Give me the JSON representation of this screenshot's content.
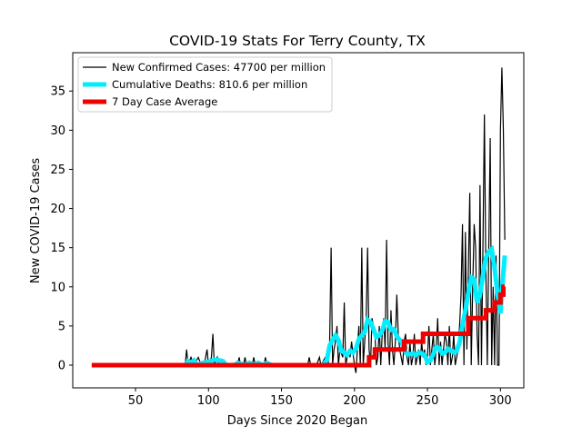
{
  "chart_data": {
    "type": "line",
    "title": "COVID-19 Stats For Terry County, TX",
    "xlabel": "Days Since 2020 Began",
    "ylabel": "New COVID-19 Cases",
    "xlim": [
      7,
      316
    ],
    "ylim": [
      -2.9,
      39.9
    ],
    "x_ticks": [
      50,
      100,
      150,
      200,
      250,
      300
    ],
    "y_ticks": [
      0,
      5,
      10,
      15,
      20,
      25,
      30,
      35
    ],
    "grid": false,
    "legend_position": "top-left",
    "series": [
      {
        "name": "New Confirmed Cases: 47700 per million",
        "color": "#000000",
        "points": [
          [
            20,
            0
          ],
          [
            84,
            0
          ],
          [
            85,
            2
          ],
          [
            86,
            0
          ],
          [
            88,
            1
          ],
          [
            90,
            0
          ],
          [
            93,
            1
          ],
          [
            95,
            0
          ],
          [
            97,
            0
          ],
          [
            99,
            2
          ],
          [
            100,
            0
          ],
          [
            102,
            1
          ],
          [
            103,
            4
          ],
          [
            104,
            0
          ],
          [
            106,
            1
          ],
          [
            107,
            0
          ],
          [
            110,
            0
          ],
          [
            112,
            0
          ],
          [
            120,
            0
          ],
          [
            121,
            1
          ],
          [
            122,
            0
          ],
          [
            124,
            0
          ],
          [
            125,
            1
          ],
          [
            126,
            0
          ],
          [
            130,
            0
          ],
          [
            131,
            1
          ],
          [
            132,
            0
          ],
          [
            138,
            0
          ],
          [
            139,
            1
          ],
          [
            140,
            0
          ],
          [
            145,
            0
          ],
          [
            168,
            0
          ],
          [
            169,
            1
          ],
          [
            170,
            0
          ],
          [
            174,
            0
          ],
          [
            176,
            1
          ],
          [
            177,
            0
          ],
          [
            180,
            1
          ],
          [
            182,
            0
          ],
          [
            183,
            3
          ],
          [
            184,
            15
          ],
          [
            185,
            0
          ],
          [
            186,
            2
          ],
          [
            187,
            3
          ],
          [
            188,
            5
          ],
          [
            189,
            0
          ],
          [
            190,
            2
          ],
          [
            192,
            1
          ],
          [
            193,
            8
          ],
          [
            194,
            0
          ],
          [
            196,
            2
          ],
          [
            197,
            1
          ],
          [
            198,
            3
          ],
          [
            200,
            0
          ],
          [
            201,
            -1
          ],
          [
            202,
            2
          ],
          [
            203,
            5
          ],
          [
            204,
            0
          ],
          [
            205,
            15
          ],
          [
            206,
            0
          ],
          [
            207,
            3
          ],
          [
            208,
            6
          ],
          [
            209,
            15
          ],
          [
            210,
            2
          ],
          [
            211,
            0
          ],
          [
            212,
            6
          ],
          [
            213,
            5
          ],
          [
            214,
            4
          ],
          [
            215,
            0
          ],
          [
            216,
            1
          ],
          [
            217,
            5
          ],
          [
            218,
            0
          ],
          [
            219,
            4
          ],
          [
            220,
            6
          ],
          [
            221,
            2
          ],
          [
            222,
            16
          ],
          [
            223,
            3
          ],
          [
            224,
            0
          ],
          [
            225,
            7
          ],
          [
            226,
            2
          ],
          [
            227,
            0
          ],
          [
            228,
            3
          ],
          [
            229,
            9
          ],
          [
            230,
            4
          ],
          [
            231,
            2
          ],
          [
            232,
            1
          ],
          [
            233,
            0
          ],
          [
            234,
            3
          ],
          [
            235,
            4
          ],
          [
            236,
            1
          ],
          [
            237,
            0
          ],
          [
            238,
            3
          ],
          [
            239,
            0
          ],
          [
            240,
            1
          ],
          [
            241,
            4
          ],
          [
            242,
            0
          ],
          [
            243,
            1
          ],
          [
            244,
            2
          ],
          [
            245,
            0
          ],
          [
            246,
            3
          ],
          [
            247,
            1
          ],
          [
            248,
            2
          ],
          [
            249,
            0
          ],
          [
            250,
            1
          ],
          [
            251,
            5
          ],
          [
            252,
            0
          ],
          [
            253,
            2
          ],
          [
            254,
            4
          ],
          [
            255,
            0
          ],
          [
            256,
            2
          ],
          [
            257,
            6
          ],
          [
            258,
            0
          ],
          [
            259,
            3
          ],
          [
            260,
            0
          ],
          [
            261,
            2
          ],
          [
            262,
            4
          ],
          [
            263,
            3
          ],
          [
            264,
            0
          ],
          [
            265,
            5
          ],
          [
            266,
            0
          ],
          [
            267,
            1
          ],
          [
            268,
            4
          ],
          [
            269,
            0
          ],
          [
            270,
            1
          ],
          [
            271,
            2
          ],
          [
            272,
            5
          ],
          [
            273,
            9
          ],
          [
            274,
            18
          ],
          [
            275,
            0
          ],
          [
            276,
            17
          ],
          [
            277,
            2
          ],
          [
            278,
            12
          ],
          [
            279,
            22
          ],
          [
            280,
            0
          ],
          [
            281,
            10
          ],
          [
            282,
            18
          ],
          [
            283,
            15
          ],
          [
            284,
            4
          ],
          [
            285,
            0
          ],
          [
            286,
            23
          ],
          [
            287,
            0
          ],
          [
            288,
            15
          ],
          [
            289,
            32
          ],
          [
            290,
            12
          ],
          [
            291,
            0
          ],
          [
            292,
            15
          ],
          [
            293,
            29
          ],
          [
            294,
            0
          ],
          [
            295,
            10
          ],
          [
            296,
            0
          ],
          [
            297,
            14
          ],
          [
            298,
            0
          ],
          [
            299,
            0
          ],
          [
            300,
            30
          ],
          [
            301,
            38
          ],
          [
            302,
            30
          ],
          [
            303,
            16
          ]
        ]
      },
      {
        "name": "Cumulative Deaths: 810.6 per million",
        "color": "#00eeff",
        "points": [
          [
            84,
            0
          ],
          [
            86,
            0.5
          ],
          [
            88,
            0.3
          ],
          [
            90,
            0.6
          ],
          [
            92,
            0
          ],
          [
            96,
            0.3
          ],
          [
            100,
            0.4
          ],
          [
            104,
            0.7
          ],
          [
            108,
            0.6
          ],
          [
            110,
            0.5
          ],
          [
            112,
            0
          ],
          [
            118,
            0
          ],
          [
            120,
            0.3
          ],
          [
            125,
            0
          ],
          [
            128,
            0.3
          ],
          [
            131,
            0
          ],
          [
            134,
            0.3
          ],
          [
            137,
            0
          ],
          [
            140,
            0.3
          ],
          [
            143,
            0
          ],
          [
            145,
            0
          ],
          [
            178,
            0
          ],
          [
            181,
            0.6
          ],
          [
            183,
            2.5
          ],
          [
            185,
            3.2
          ],
          [
            187,
            3.8
          ],
          [
            189,
            3.2
          ],
          [
            191,
            1.8
          ],
          [
            193,
            1.6
          ],
          [
            195,
            1.3
          ],
          [
            197,
            1.8
          ],
          [
            199,
            1.6
          ],
          [
            201,
            2.1
          ],
          [
            203,
            3.3
          ],
          [
            205,
            3.8
          ],
          [
            207,
            4.2
          ],
          [
            209,
            5.8
          ],
          [
            211,
            5.5
          ],
          [
            213,
            4.6
          ],
          [
            215,
            3.6
          ],
          [
            217,
            3.8
          ],
          [
            219,
            4.4
          ],
          [
            221,
            5.6
          ],
          [
            223,
            5.5
          ],
          [
            225,
            4.5
          ],
          [
            227,
            4.6
          ],
          [
            229,
            3.7
          ],
          [
            231,
            3.2
          ],
          [
            232,
            3.1
          ],
          [
            234,
            2.0
          ],
          [
            236,
            1.4
          ],
          [
            238,
            1.4
          ],
          [
            240,
            1.5
          ],
          [
            242,
            1.3
          ],
          [
            244,
            1.6
          ],
          [
            246,
            1.5
          ],
          [
            248,
            1.3
          ],
          [
            250,
            0.4
          ],
          [
            252,
            0.6
          ],
          [
            254,
            1.4
          ],
          [
            256,
            2.3
          ],
          [
            258,
            2.2
          ],
          [
            260,
            1.5
          ],
          [
            262,
            1.6
          ],
          [
            264,
            2.1
          ],
          [
            266,
            1.9
          ],
          [
            268,
            1.6
          ],
          [
            270,
            1.8
          ],
          [
            272,
            2.9
          ],
          [
            274,
            5.1
          ],
          [
            276,
            7.0
          ],
          [
            278,
            9.2
          ],
          [
            280,
            11.2
          ],
          [
            282,
            11.0
          ],
          [
            284,
            8.0
          ],
          [
            286,
            9.0
          ],
          [
            288,
            11.4
          ],
          [
            290,
            13.7
          ],
          [
            292,
            14.5
          ],
          [
            294,
            14.8
          ],
          [
            296,
            12.4
          ],
          [
            298,
            9.1
          ],
          [
            300,
            6.6
          ],
          [
            301,
            9.5
          ],
          [
            303,
            14.0
          ]
        ]
      },
      {
        "name": "7 Day Case Average",
        "color": "#ee0000",
        "points": [
          [
            20,
            0
          ],
          [
            210,
            0
          ],
          [
            210,
            1
          ],
          [
            214,
            1
          ],
          [
            214,
            2
          ],
          [
            234,
            2
          ],
          [
            234,
            3
          ],
          [
            247,
            3
          ],
          [
            247,
            4
          ],
          [
            278,
            4
          ],
          [
            278,
            6
          ],
          [
            290,
            6
          ],
          [
            290,
            7
          ],
          [
            296,
            7
          ],
          [
            296,
            8
          ],
          [
            300,
            8
          ],
          [
            300,
            9
          ],
          [
            302,
            9
          ],
          [
            302,
            10
          ],
          [
            303,
            10
          ]
        ]
      }
    ]
  }
}
